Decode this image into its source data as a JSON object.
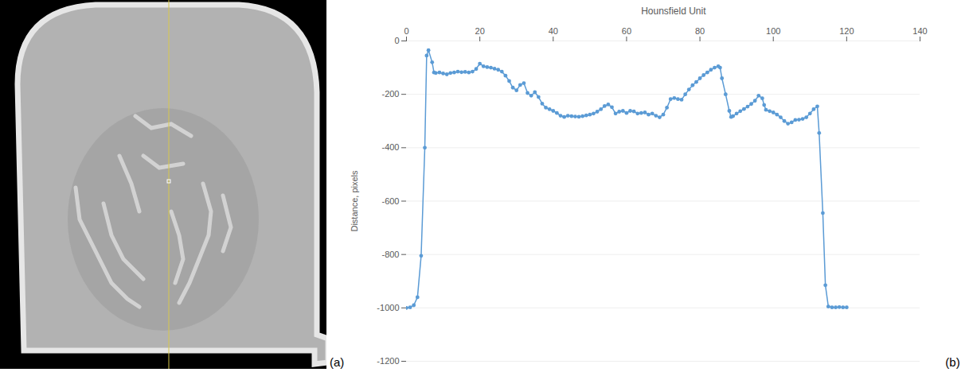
{
  "figure": {
    "panel_labels": [
      "(a)",
      "(b)"
    ]
  },
  "chart_data": {
    "type": "line",
    "title": "Hounsfield Unit",
    "y_label": "Distance, pixels",
    "x": [
      0,
      1,
      2,
      3,
      4,
      5,
      5.5,
      6,
      7,
      7.5,
      8,
      9,
      10,
      11,
      12,
      13,
      14,
      15,
      16,
      17,
      18,
      19,
      20,
      21,
      22,
      23,
      24,
      25,
      26,
      27,
      28,
      29,
      30,
      31,
      32,
      33,
      34,
      35,
      36,
      37,
      38,
      39,
      40,
      41,
      42,
      43,
      44,
      45,
      46,
      47,
      48,
      49,
      50,
      51,
      52,
      53,
      54,
      55,
      56,
      57,
      58,
      59,
      60,
      61,
      62,
      63,
      64,
      65,
      66,
      67,
      68,
      69,
      70,
      71,
      72,
      73,
      74,
      75,
      76,
      77,
      78,
      79,
      80,
      81,
      82,
      83,
      84,
      85,
      85.5,
      86,
      87,
      88,
      88.5,
      89,
      90,
      91,
      92,
      93,
      94,
      95,
      96,
      97,
      97.5,
      98,
      99,
      100,
      101,
      102,
      103,
      104,
      105,
      106,
      107,
      108,
      109,
      110,
      111,
      112,
      112.5,
      113.5,
      114.2,
      115,
      116,
      117,
      118,
      119,
      120
    ],
    "values": [
      -1000,
      -998,
      -990,
      -960,
      -805,
      -400,
      -55,
      -35,
      -80,
      -118,
      -120,
      -118,
      -122,
      -125,
      -120,
      -118,
      -115,
      -117,
      -116,
      -118,
      -115,
      -105,
      -85,
      -95,
      -98,
      -100,
      -104,
      -108,
      -115,
      -130,
      -150,
      -175,
      -185,
      -165,
      -158,
      -195,
      -205,
      -192,
      -210,
      -235,
      -250,
      -256,
      -262,
      -270,
      -280,
      -285,
      -280,
      -282,
      -283,
      -284,
      -282,
      -279,
      -276,
      -272,
      -265,
      -256,
      -244,
      -238,
      -248,
      -272,
      -265,
      -262,
      -270,
      -262,
      -264,
      -272,
      -270,
      -268,
      -276,
      -272,
      -280,
      -286,
      -276,
      -250,
      -218,
      -214,
      -218,
      -220,
      -200,
      -182,
      -166,
      -154,
      -140,
      -128,
      -118,
      -108,
      -100,
      -95,
      -100,
      -140,
      -200,
      -262,
      -285,
      -282,
      -272,
      -263,
      -255,
      -246,
      -236,
      -224,
      -205,
      -215,
      -240,
      -258,
      -263,
      -268,
      -276,
      -286,
      -300,
      -310,
      -305,
      -296,
      -295,
      -292,
      -286,
      -272,
      -256,
      -245,
      -345,
      -645,
      -915,
      -995,
      -998,
      -998,
      -997,
      -998,
      -998
    ],
    "color": "#5b9bd5",
    "marker": "circle",
    "line_style": "solid",
    "xlim": [
      0,
      140
    ],
    "xticks": [
      0,
      20,
      40,
      60,
      80,
      100,
      120,
      140
    ],
    "ylim": [
      -1200,
      0
    ],
    "yticks": [
      -1200,
      -1000,
      -800,
      -600,
      -400,
      -200,
      0
    ],
    "grid": "y"
  }
}
